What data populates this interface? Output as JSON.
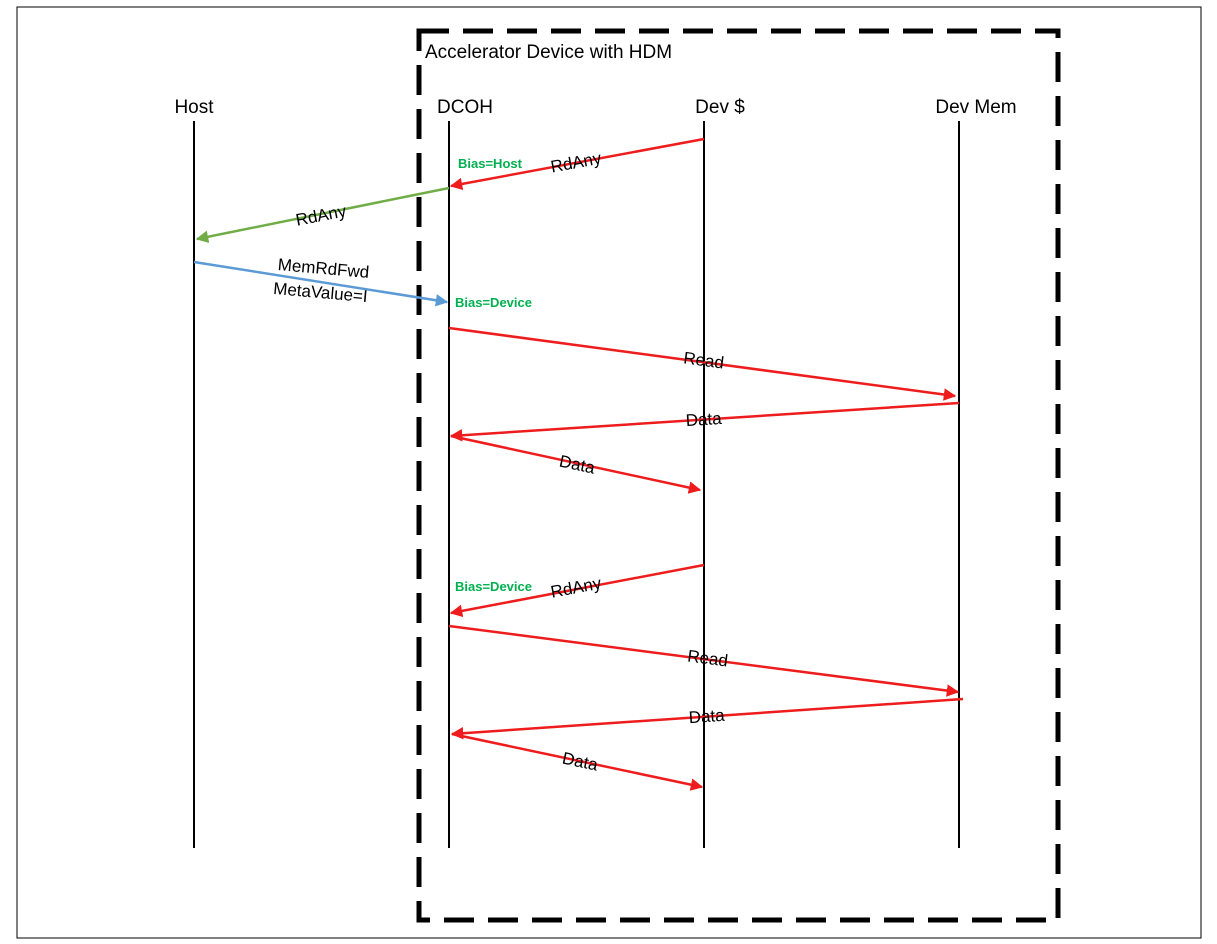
{
  "colors": {
    "red": "#ee1c1c",
    "green": "#70ad47",
    "blue": "#5b9bd5",
    "note_green": "#00b050",
    "black": "#000000"
  },
  "group": {
    "title": "Accelerator Device with HDM"
  },
  "lifelines": [
    {
      "id": "host",
      "label": "Host"
    },
    {
      "id": "dcoh",
      "label": "DCOH"
    },
    {
      "id": "devcache",
      "label": "Dev $"
    },
    {
      "id": "devmem",
      "label": "Dev Mem"
    }
  ],
  "messages": [
    {
      "from": "devcache",
      "to": "dcoh",
      "label": "RdAny",
      "color": "red"
    },
    {
      "from": "dcoh",
      "to": "host",
      "label": "RdAny",
      "color": "green"
    },
    {
      "from": "host",
      "to": "dcoh",
      "label": "MemRdFwd",
      "label2": "MetaValue=I",
      "color": "blue"
    },
    {
      "from": "dcoh",
      "to": "devmem",
      "label": "Read",
      "color": "red"
    },
    {
      "from": "devmem",
      "to": "dcoh",
      "label": "Data",
      "color": "red"
    },
    {
      "from": "dcoh",
      "to": "devcache",
      "label": "Data",
      "color": "red"
    },
    {
      "from": "devcache",
      "to": "dcoh",
      "label": "RdAny",
      "color": "red"
    },
    {
      "from": "dcoh",
      "to": "devmem",
      "label": "Read",
      "color": "red"
    },
    {
      "from": "devmem",
      "to": "dcoh",
      "label": "Data",
      "color": "red"
    },
    {
      "from": "dcoh",
      "to": "devcache",
      "label": "Data",
      "color": "red"
    }
  ],
  "notes": [
    {
      "text": "Bias=Host"
    },
    {
      "text": "Bias=Device"
    },
    {
      "text": "Bias=Device"
    }
  ]
}
